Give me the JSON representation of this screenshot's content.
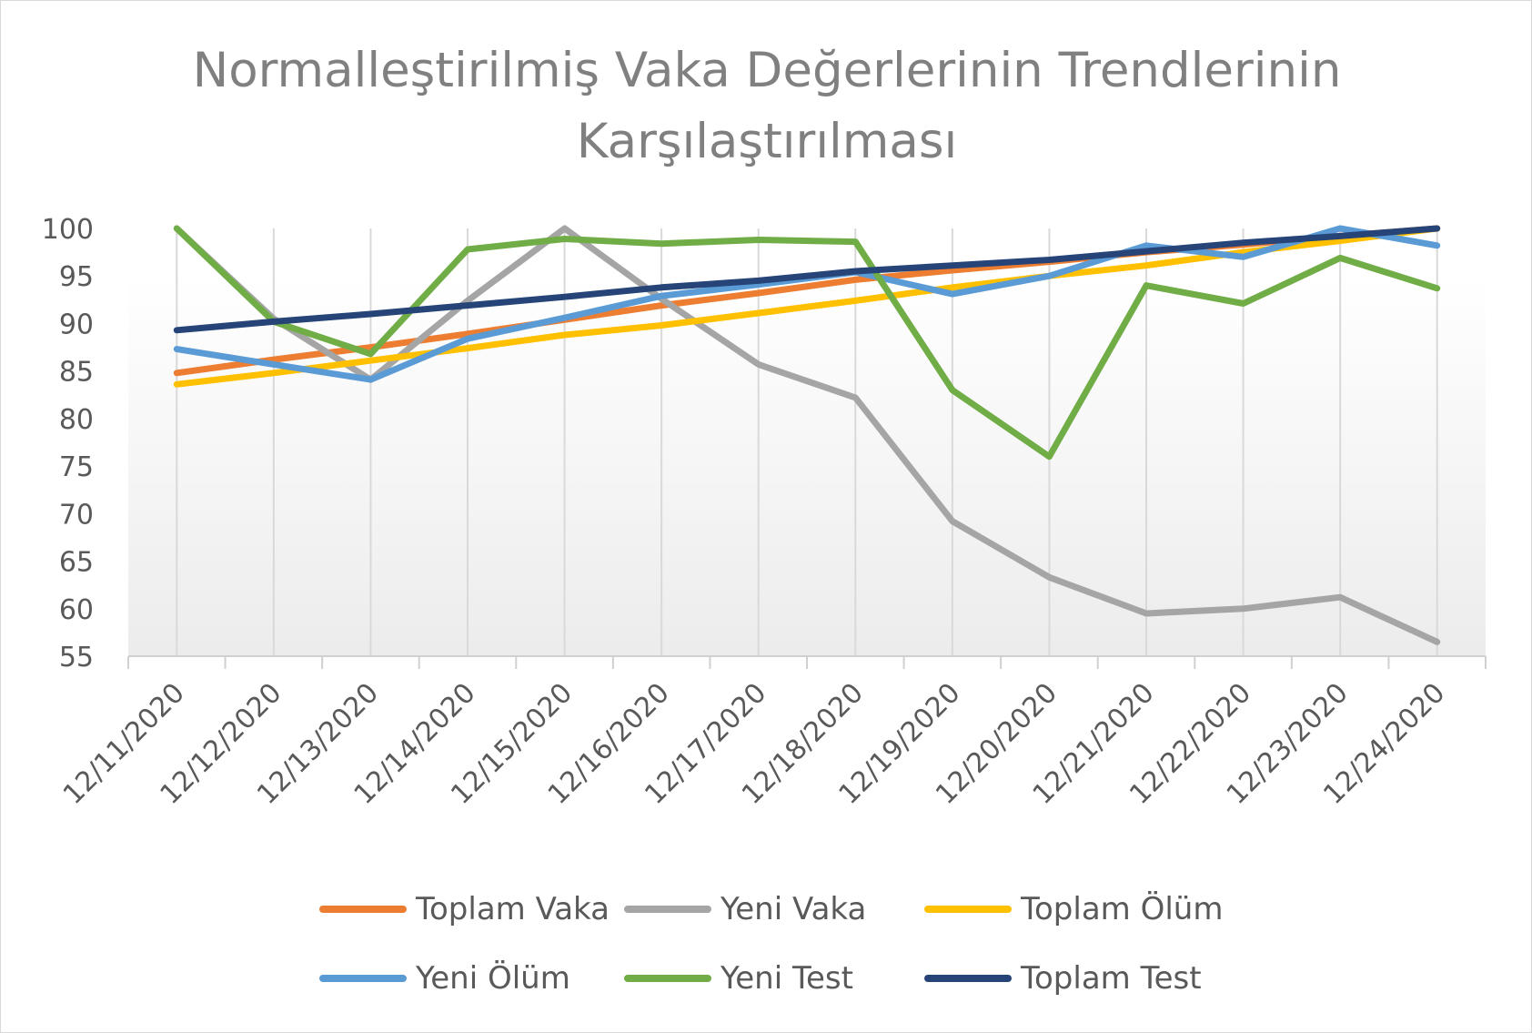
{
  "chart_data": {
    "type": "line",
    "title_line1": "Normalleştirilmiş Vaka Değerlerinin Trendlerinin",
    "title_line2": "Karşılaştırılması",
    "categories": [
      "12/11/2020",
      "12/12/2020",
      "12/13/2020",
      "12/14/2020",
      "12/15/2020",
      "12/16/2020",
      "12/17/2020",
      "12/18/2020",
      "12/19/2020",
      "12/20/2020",
      "12/21/2020",
      "12/22/2020",
      "12/23/2020",
      "12/24/2020"
    ],
    "y_ticks": [
      55,
      60,
      65,
      70,
      75,
      80,
      85,
      90,
      95,
      100
    ],
    "ylim": [
      55,
      100
    ],
    "grid": "vertical",
    "legend_position": "bottom",
    "series": [
      {
        "name": "Toplam Vaka",
        "color": "#ed7d31",
        "values": [
          84.8,
          86.2,
          87.5,
          88.9,
          90.4,
          91.9,
          93.2,
          94.6,
          95.6,
          96.5,
          97.5,
          98.3,
          99.2,
          100
        ]
      },
      {
        "name": "Yeni Vaka",
        "color": "#a5a5a5",
        "values": [
          100,
          90.5,
          84.1,
          92.4,
          100,
          92.6,
          85.7,
          82.2,
          69.2,
          63.3,
          59.5,
          60.0,
          61.2,
          56.5
        ]
      },
      {
        "name": "Toplam Ölüm",
        "color": "#ffc000",
        "values": [
          83.6,
          84.8,
          86.1,
          87.4,
          88.8,
          89.8,
          91.1,
          92.4,
          93.8,
          95.0,
          96.1,
          97.5,
          98.7,
          100
        ]
      },
      {
        "name": "Yeni Ölüm",
        "color": "#5b9bd5",
        "values": [
          87.3,
          85.7,
          84.1,
          88.4,
          90.6,
          92.9,
          94.1,
          95.4,
          93.1,
          95.0,
          98.2,
          97.0,
          100,
          98.2
        ]
      },
      {
        "name": "Yeni Test",
        "color": "#70ad47",
        "values": [
          100,
          90.2,
          86.8,
          97.8,
          98.9,
          98.4,
          98.8,
          98.6,
          83.0,
          76.0,
          94.0,
          92.1,
          96.9,
          93.7
        ]
      },
      {
        "name": "Toplam Test",
        "color": "#264478",
        "values": [
          89.3,
          90.2,
          91.0,
          91.9,
          92.8,
          93.8,
          94.5,
          95.5,
          96.1,
          96.7,
          97.6,
          98.5,
          99.2,
          100
        ]
      }
    ]
  }
}
